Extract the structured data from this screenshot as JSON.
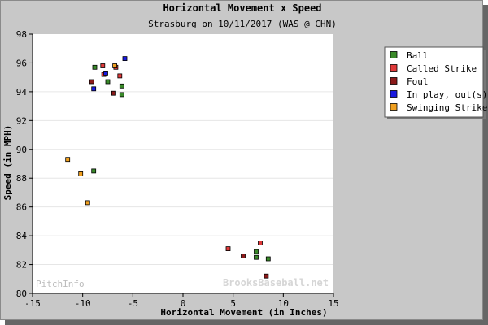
{
  "chart_data": {
    "type": "scatter",
    "title": "Horizontal Movement x Speed",
    "subtitle": "Strasburg on 10/11/2017 (WAS @ CHN)",
    "xlabel": "Horizontal Movement (in Inches)",
    "ylabel": "Speed (in MPH)",
    "xlim": [
      -15,
      15
    ],
    "ylim": [
      80,
      98
    ],
    "xticks": [
      -15,
      -10,
      -5,
      0,
      5,
      10,
      15
    ],
    "yticks": [
      80,
      82,
      84,
      86,
      88,
      90,
      92,
      94,
      96,
      98
    ],
    "grid": "horizontal",
    "legend_position": "top-right",
    "watermark_left": "PitchInfo",
    "watermark_right": "BrooksBaseball.net",
    "series": [
      {
        "name": "Ball",
        "color": "#3a8a2a",
        "points": [
          [
            -8.8,
            95.7
          ],
          [
            -7.5,
            94.7
          ],
          [
            -6.1,
            94.4
          ],
          [
            -6.1,
            93.8
          ],
          [
            -8.9,
            88.5
          ],
          [
            7.3,
            82.9
          ],
          [
            7.3,
            82.5
          ],
          [
            8.5,
            82.4
          ]
        ]
      },
      {
        "name": "Called Strike",
        "color": "#e03a3a",
        "points": [
          [
            -8.0,
            95.8
          ],
          [
            -6.7,
            95.7
          ],
          [
            -7.9,
            95.2
          ],
          [
            -6.3,
            95.1
          ],
          [
            4.5,
            83.1
          ],
          [
            7.7,
            83.5
          ]
        ]
      },
      {
        "name": "Foul",
        "color": "#8b1a1a",
        "points": [
          [
            -9.1,
            94.7
          ],
          [
            -6.9,
            93.9
          ],
          [
            6.0,
            82.6
          ],
          [
            8.3,
            81.2
          ]
        ]
      },
      {
        "name": "In play, out(s)",
        "color": "#1a1ae0",
        "points": [
          [
            -5.8,
            96.3
          ],
          [
            -7.7,
            95.3
          ],
          [
            -8.9,
            94.2
          ]
        ]
      },
      {
        "name": "Swinging Strike",
        "color": "#f0a020",
        "points": [
          [
            -6.8,
            95.8
          ],
          [
            -11.5,
            89.3
          ],
          [
            -10.2,
            88.3
          ],
          [
            -9.5,
            86.3
          ]
        ]
      }
    ]
  }
}
